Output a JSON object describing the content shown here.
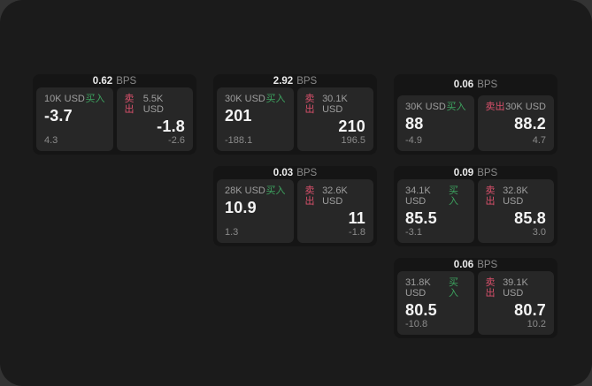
{
  "labels": {
    "buy": "买入",
    "sell": "卖出",
    "bps_unit": "BPS"
  },
  "colors": {
    "window_background": "#1b1b1b",
    "card_background": "#151515",
    "tile_background": "#272727",
    "buy_green": "#3da35f",
    "sell_red": "#d9506b"
  },
  "cards": [
    {
      "bps": "0.62",
      "buy": {
        "size": "10K USD",
        "price": "-3.7",
        "change": "4.3"
      },
      "sell": {
        "size": "5.5K USD",
        "price": "-1.8",
        "change": "-2.6"
      }
    },
    {
      "bps": "2.92",
      "buy": {
        "size": "30K USD",
        "price": "201",
        "change": "-188.1"
      },
      "sell": {
        "size": "30.1K USD",
        "price": "210",
        "change": "196.5"
      }
    },
    {
      "bps": "0.06",
      "buy": {
        "size": "30K USD",
        "price": "88",
        "change": "-4.9"
      },
      "sell": {
        "size": "30K USD",
        "price": "88.2",
        "change": "4.7"
      }
    },
    {
      "bps": "0.03",
      "buy": {
        "size": "28K USD",
        "price": "10.9",
        "change": "1.3"
      },
      "sell": {
        "size": "32.6K USD",
        "price": "11",
        "change": "-1.8"
      }
    },
    {
      "bps": "0.09",
      "buy": {
        "size": "34.1K USD",
        "price": "85.5",
        "change": "-3.1"
      },
      "sell": {
        "size": "32.8K USD",
        "price": "85.8",
        "change": "3.0"
      }
    },
    {
      "bps": "0.06",
      "buy": {
        "size": "31.8K USD",
        "price": "80.5",
        "change": "-10.8"
      },
      "sell": {
        "size": "39.1K USD",
        "price": "80.7",
        "change": "10.2"
      }
    }
  ]
}
